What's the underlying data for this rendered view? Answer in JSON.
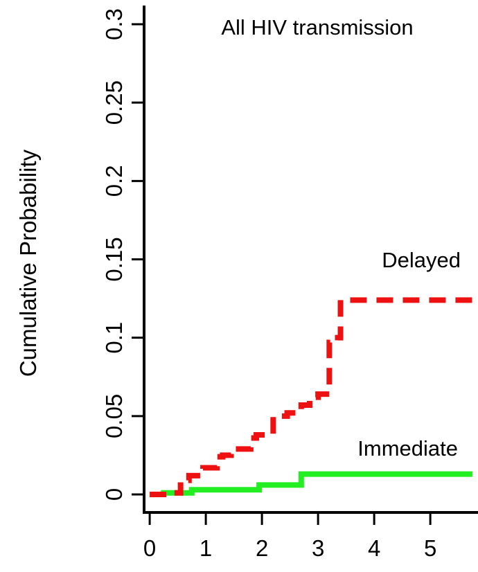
{
  "chart_data": {
    "type": "line",
    "title": "All HIV transmission",
    "xlabel": "",
    "ylabel": "Cumulative Probability",
    "xlim": [
      -0.1,
      5.85
    ],
    "ylim": [
      0,
      0.3
    ],
    "xticks": [
      0,
      1,
      2,
      3,
      4,
      5
    ],
    "xtick_labels": [
      "0",
      "1",
      "2",
      "3",
      "4",
      "5"
    ],
    "yticks": [
      0,
      0.05,
      0.1,
      0.15,
      0.2,
      0.25,
      0.3
    ],
    "ytick_labels": [
      "0",
      "0.05",
      "0.1",
      "0.15",
      "0.2",
      "0.25",
      "0.3"
    ],
    "grid": false,
    "series": [
      {
        "name": "Delayed",
        "color": "#ee1111",
        "style": "dashed-step",
        "x": [
          0,
          0.3,
          0.55,
          0.7,
          0.95,
          1.2,
          1.3,
          1.45,
          1.8,
          1.9,
          2.2,
          2.45,
          2.7,
          2.85,
          3.0,
          3.2,
          3.35,
          3.4,
          5.75
        ],
        "y": [
          0,
          0.001,
          0.009,
          0.012,
          0.017,
          0.024,
          0.025,
          0.029,
          0.036,
          0.038,
          0.05,
          0.052,
          0.057,
          0.062,
          0.064,
          0.097,
          0.1,
          0.124,
          0.124
        ]
      },
      {
        "name": "Immediate",
        "color": "#22ee22",
        "style": "solid-step",
        "x": [
          0,
          0.25,
          0.75,
          1.95,
          2.7,
          5.75
        ],
        "y": [
          0,
          0.001,
          0.003,
          0.006,
          0.013,
          0.013
        ]
      }
    ]
  }
}
